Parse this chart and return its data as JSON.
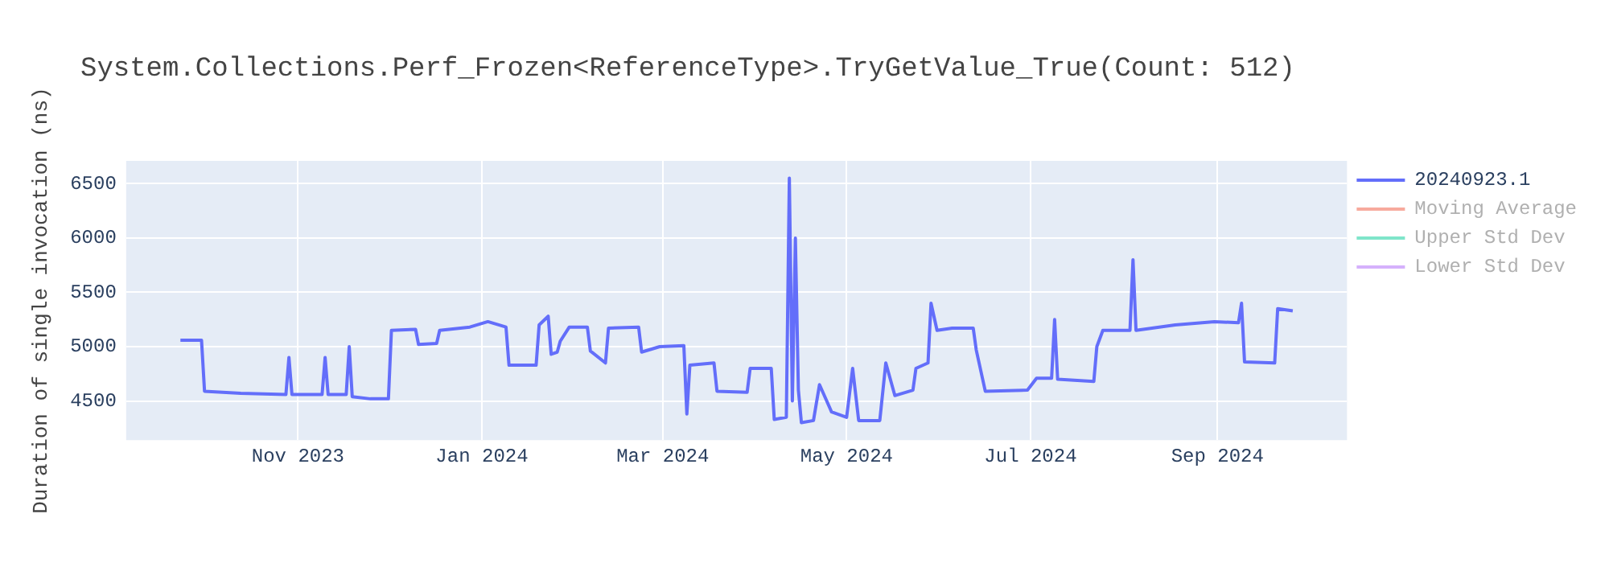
{
  "chart_data": {
    "type": "line",
    "title": "System.Collections.Perf_Frozen<ReferenceType>.TryGetValue_True(Count: 512)",
    "ylabel": "Duration of single invocation (ns)",
    "x": [
      "2023-09-23",
      "2023-09-30",
      "2023-10-01",
      "2023-10-13",
      "2023-10-28",
      "2023-10-29",
      "2023-10-30",
      "2023-11-09",
      "2023-11-10",
      "2023-11-11",
      "2023-11-17",
      "2023-11-18",
      "2023-11-19",
      "2023-11-25",
      "2023-12-01",
      "2023-12-02",
      "2023-12-10",
      "2023-12-11",
      "2023-12-17",
      "2023-12-18",
      "2023-12-28",
      "2024-01-03",
      "2024-01-09",
      "2024-01-10",
      "2024-01-19",
      "2024-01-20",
      "2024-01-23",
      "2024-01-24",
      "2024-01-26",
      "2024-01-27",
      "2024-01-30",
      "2024-02-05",
      "2024-02-06",
      "2024-02-11",
      "2024-02-12",
      "2024-02-22",
      "2024-02-23",
      "2024-02-29",
      "2024-03-08",
      "2024-03-09",
      "2024-03-10",
      "2024-03-18",
      "2024-03-19",
      "2024-03-29",
      "2024-03-30",
      "2024-04-06",
      "2024-04-07",
      "2024-04-11",
      "2024-04-12",
      "2024-04-13",
      "2024-04-14",
      "2024-04-15",
      "2024-04-16",
      "2024-04-20",
      "2024-04-22",
      "2024-04-26",
      "2024-05-01",
      "2024-05-03",
      "2024-05-05",
      "2024-05-12",
      "2024-05-14",
      "2024-05-17",
      "2024-05-23",
      "2024-05-24",
      "2024-05-28",
      "2024-05-29",
      "2024-05-31",
      "2024-06-05",
      "2024-06-12",
      "2024-06-13",
      "2024-06-16",
      "2024-06-30",
      "2024-07-03",
      "2024-07-08",
      "2024-07-09",
      "2024-07-10",
      "2024-07-22",
      "2024-07-23",
      "2024-07-25",
      "2024-08-03",
      "2024-08-04",
      "2024-08-05",
      "2024-08-18",
      "2024-08-31",
      "2024-09-08",
      "2024-09-09",
      "2024-09-10",
      "2024-09-20",
      "2024-09-21",
      "2024-09-26"
    ],
    "series": [
      {
        "name": "20240923.1",
        "color": "#636efa",
        "values": [
          5060,
          5060,
          4590,
          4570,
          4560,
          4900,
          4560,
          4560,
          4900,
          4560,
          4560,
          5000,
          4540,
          4520,
          4520,
          5150,
          5160,
          5020,
          5030,
          5150,
          5180,
          5230,
          5180,
          4830,
          4830,
          5200,
          5280,
          4930,
          4950,
          5050,
          5180,
          5180,
          4960,
          4850,
          5170,
          5180,
          4950,
          5000,
          5010,
          4380,
          4830,
          4850,
          4590,
          4580,
          4800,
          4800,
          4330,
          4350,
          6550,
          4500,
          6000,
          4600,
          4300,
          4320,
          4650,
          4400,
          4350,
          4800,
          4320,
          4320,
          4850,
          4550,
          4600,
          4800,
          4850,
          5400,
          5150,
          5170,
          5170,
          4970,
          4590,
          4600,
          4710,
          4710,
          5250,
          4700,
          4680,
          5000,
          5150,
          5150,
          5800,
          5150,
          5200,
          5230,
          5220,
          5400,
          4860,
          4850,
          5350,
          5330
        ]
      },
      {
        "name": "Moving Average",
        "color": "#ef553b",
        "values": [
          null,
          null,
          null,
          null,
          null,
          null,
          null,
          null,
          null,
          null,
          null,
          null,
          null,
          null,
          null,
          null,
          null,
          null,
          null,
          null,
          null,
          null,
          null,
          null,
          null,
          null,
          null,
          null,
          null,
          null,
          null,
          null,
          null,
          null,
          null,
          null,
          null,
          null,
          null,
          null,
          null,
          null,
          null,
          null,
          null,
          null,
          null,
          null,
          null,
          null,
          null,
          null,
          null,
          null,
          null,
          null,
          null,
          null,
          null,
          null,
          null,
          null,
          null,
          null,
          null,
          null,
          null,
          null,
          null,
          null,
          null,
          null,
          null,
          null,
          null,
          null,
          null,
          null,
          null,
          null,
          null,
          null,
          null,
          null,
          null,
          null,
          null,
          null,
          null,
          null
        ]
      },
      {
        "name": "Upper Std Dev",
        "color": "#00cc96",
        "values": [
          null,
          null,
          null,
          null,
          null,
          null,
          null,
          null,
          null,
          null,
          null,
          null,
          null,
          null,
          null,
          null,
          null,
          null,
          null,
          null,
          null,
          null,
          null,
          null,
          null,
          null,
          null,
          null,
          null,
          null,
          null,
          null,
          null,
          null,
          null,
          null,
          null,
          null,
          null,
          null,
          null,
          null,
          null,
          null,
          null,
          null,
          null,
          null,
          null,
          null,
          null,
          null,
          null,
          null,
          null,
          null,
          null,
          null,
          null,
          null,
          null,
          null,
          null,
          null,
          null,
          null,
          null,
          null,
          null,
          null,
          null,
          null,
          null,
          null,
          null,
          null,
          null,
          null,
          null,
          null,
          null,
          null,
          null,
          null,
          null,
          null,
          null,
          null,
          null,
          null
        ]
      },
      {
        "name": "Lower Std Dev",
        "color": "#ab63fa",
        "values": [
          null,
          null,
          null,
          null,
          null,
          null,
          null,
          null,
          null,
          null,
          null,
          null,
          null,
          null,
          null,
          null,
          null,
          null,
          null,
          null,
          null,
          null,
          null,
          null,
          null,
          null,
          null,
          null,
          null,
          null,
          null,
          null,
          null,
          null,
          null,
          null,
          null,
          null,
          null,
          null,
          null,
          null,
          null,
          null,
          null,
          null,
          null,
          null,
          null,
          null,
          null,
          null,
          null,
          null,
          null,
          null,
          null,
          null,
          null,
          null,
          null,
          null,
          null,
          null,
          null,
          null,
          null,
          null,
          null,
          null,
          null,
          null,
          null,
          null,
          null,
          null,
          null,
          null,
          null,
          null,
          null,
          null,
          null,
          null,
          null,
          null,
          null,
          null,
          null,
          null
        ]
      }
    ],
    "xlim": [
      "2023-09-05",
      "2024-10-14"
    ],
    "xticks": [
      {
        "value": "2023-11-01",
        "label": "Nov 2023"
      },
      {
        "value": "2024-01-01",
        "label": "Jan 2024"
      },
      {
        "value": "2024-03-01",
        "label": "Mar 2024"
      },
      {
        "value": "2024-05-01",
        "label": "May 2024"
      },
      {
        "value": "2024-07-01",
        "label": "Jul 2024"
      },
      {
        "value": "2024-09-01",
        "label": "Sep 2024"
      }
    ],
    "ylim": [
      4140,
      6710
    ],
    "yticks": [
      4500,
      5000,
      5500,
      6000,
      6500
    ],
    "grid": true,
    "legend": "top right",
    "marker": "none",
    "line_style": "solid"
  }
}
